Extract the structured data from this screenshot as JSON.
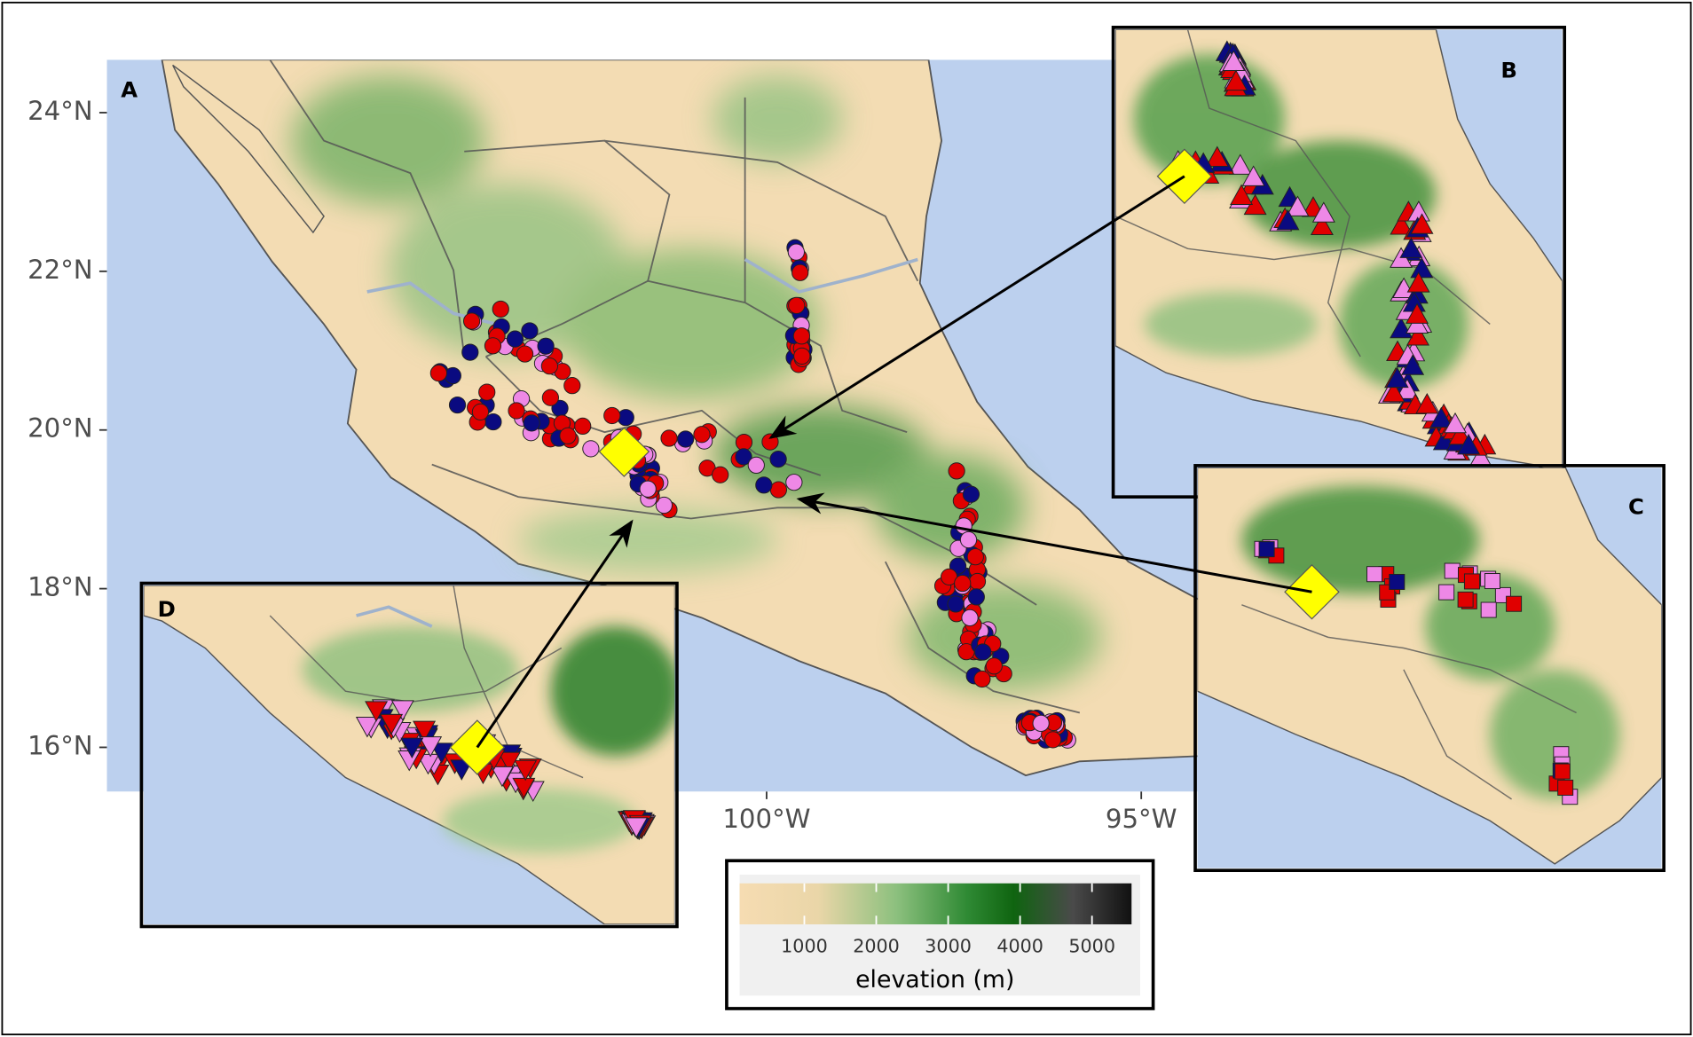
{
  "map": {
    "panels": {
      "main": "A",
      "inset_b": "B",
      "inset_c": "C",
      "inset_d": "D"
    },
    "lat_ticks": [
      {
        "value": 16,
        "label": "16°N"
      },
      {
        "value": 18,
        "label": "18°N"
      },
      {
        "value": 20,
        "label": "20°N"
      },
      {
        "value": 22,
        "label": "22°N"
      },
      {
        "value": 24,
        "label": "24°N"
      }
    ],
    "lon_ticks": [
      {
        "value": -100,
        "label": "100°W"
      },
      {
        "value": -95,
        "label": "95°W"
      }
    ],
    "legend": {
      "title": "elevation (m)",
      "range": [
        100,
        5550
      ],
      "ticks": [
        1000,
        2000,
        3000,
        4000,
        5000
      ]
    }
  }
}
